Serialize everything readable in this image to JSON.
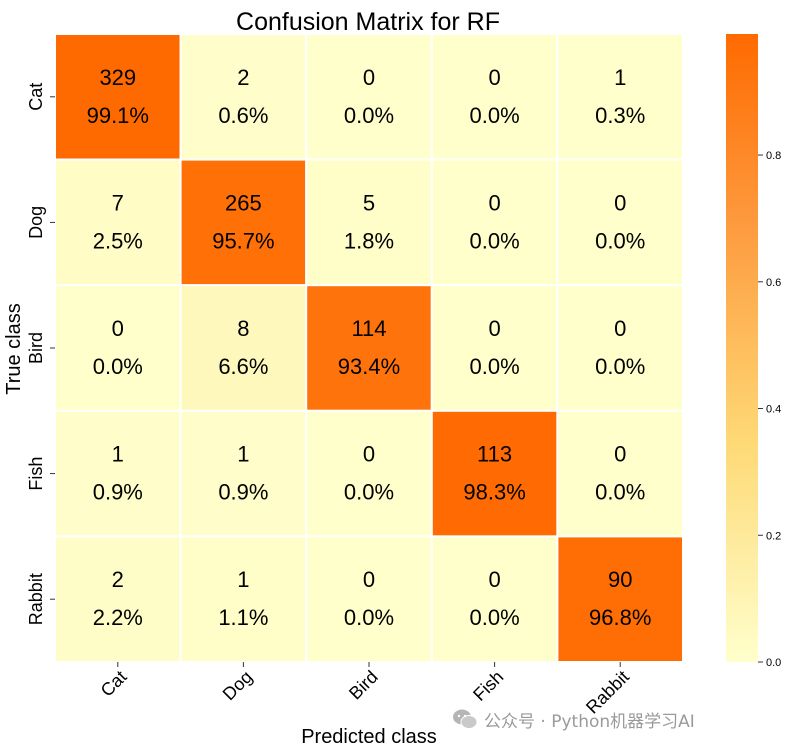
{
  "chart_data": {
    "type": "heatmap",
    "title": "Confusion Matrix for RF",
    "xlabel": "Predicted class",
    "ylabel": "True class",
    "x_categories": [
      "Cat",
      "Dog",
      "Bird",
      "Fish",
      "Rabbit"
    ],
    "y_categories": [
      "Cat",
      "Dog",
      "Bird",
      "Fish",
      "Rabbit"
    ],
    "counts": [
      [
        329,
        2,
        0,
        0,
        1
      ],
      [
        7,
        265,
        5,
        0,
        0
      ],
      [
        0,
        8,
        114,
        0,
        0
      ],
      [
        1,
        1,
        0,
        113,
        0
      ],
      [
        2,
        1,
        0,
        0,
        90
      ]
    ],
    "percent_labels": [
      [
        "99.1%",
        "0.6%",
        "0.0%",
        "0.0%",
        "0.3%"
      ],
      [
        "2.5%",
        "95.7%",
        "1.8%",
        "0.0%",
        "0.0%"
      ],
      [
        "0.0%",
        "6.6%",
        "93.4%",
        "0.0%",
        "0.0%"
      ],
      [
        "0.9%",
        "0.9%",
        "0.0%",
        "98.3%",
        "0.0%"
      ],
      [
        "2.2%",
        "1.1%",
        "0.0%",
        "0.0%",
        "96.8%"
      ]
    ],
    "colorbar": {
      "ticks": [
        "0.0",
        "0.2",
        "0.4",
        "0.6",
        "0.8"
      ],
      "range": [
        0,
        0.991
      ]
    },
    "colors": {
      "low": "#ffffcc",
      "mid": "#fed976",
      "high": "#ff6a00",
      "cell_border": "#ffffff"
    }
  },
  "watermark": {
    "text": "公众号 · Python机器学习AI"
  }
}
